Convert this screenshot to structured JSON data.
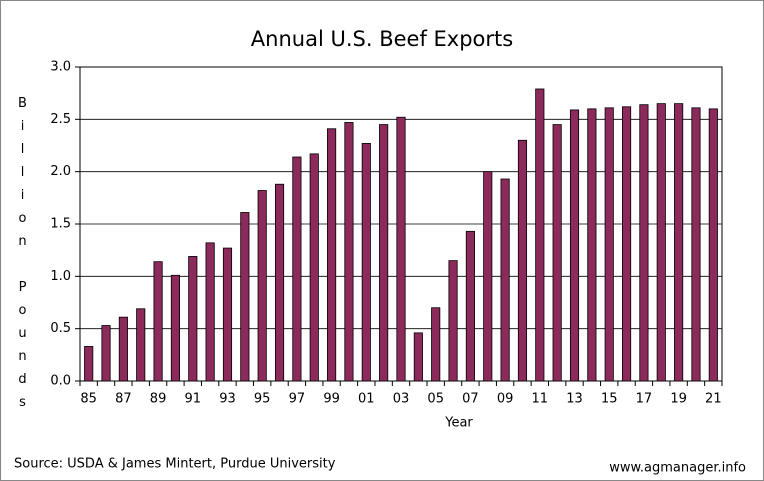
{
  "chart_data": {
    "type": "bar",
    "title": "Annual U.S. Beef Exports",
    "x_label": "Year",
    "y_label": "Billion Pounds",
    "source": "Source: USDA & James Mintert, Purdue University",
    "credit": "www.agmanager.info",
    "categories": [
      "85",
      null,
      "87",
      null,
      "89",
      null,
      "91",
      null,
      "93",
      null,
      "95",
      null,
      "97",
      null,
      "99",
      null,
      "01",
      null,
      "03",
      null,
      "05",
      null,
      "07",
      null,
      "09",
      null,
      "11",
      null,
      "13",
      null,
      "15",
      null,
      "17",
      null,
      "19",
      null,
      "21"
    ],
    "values": [
      0.33,
      0.53,
      0.61,
      0.69,
      1.14,
      1.01,
      1.19,
      1.32,
      1.27,
      1.61,
      1.82,
      1.88,
      2.14,
      2.17,
      2.41,
      2.47,
      2.27,
      2.45,
      2.52,
      0.46,
      0.7,
      1.15,
      1.43,
      2.0,
      1.93,
      2.3,
      2.79,
      2.45,
      2.59,
      2.6,
      2.61,
      2.62,
      2.64,
      2.65,
      2.65,
      2.61,
      2.6
    ],
    "color": "#8c2a5c",
    "ylim": [
      0,
      3
    ],
    "yticks": [
      {
        "value": 0,
        "label": "0.0"
      },
      0.5,
      {
        "value": 1,
        "label": "1.0"
      },
      1.5,
      {
        "value": 2,
        "label": "2.0"
      },
      2.5,
      {
        "value": 3,
        "label": "3.0"
      }
    ],
    "grid": true
  }
}
